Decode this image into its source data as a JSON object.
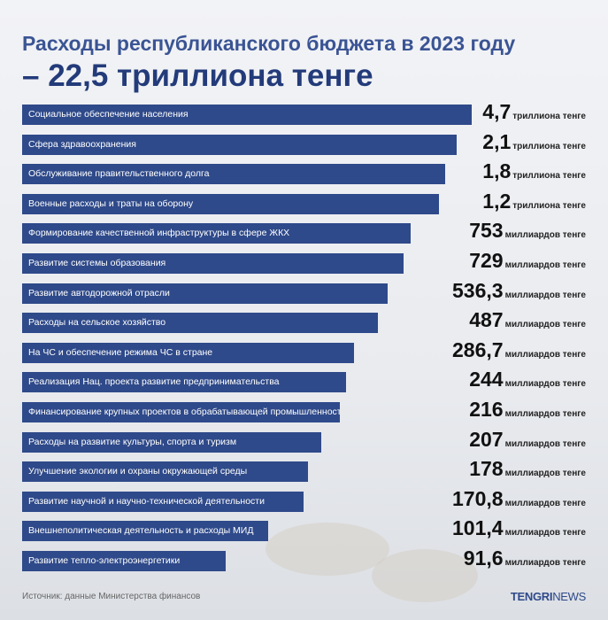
{
  "title": "Расходы республиканского бюджета в 2023 году",
  "subtitle": "– 22,5 триллиона тенге",
  "rows": [
    {
      "label": "Социальное обеспечение населения",
      "value": "4,7",
      "unit": "триллиона тенге"
    },
    {
      "label": "Сфера здравоохранения",
      "value": "2,1",
      "unit": "триллиона тенге"
    },
    {
      "label": "Обслуживание правительственного долга",
      "value": "1,8",
      "unit": "триллиона тенге"
    },
    {
      "label": "Военные расходы и траты на оборону",
      "value": "1,2",
      "unit": "триллиона тенге"
    },
    {
      "label": "Формирование качественной инфраструктуры в сфере ЖКХ",
      "value": "753",
      "unit": "миллиардов тенге"
    },
    {
      "label": "Развитие системы образования",
      "value": "729",
      "unit": "миллиардов тенге"
    },
    {
      "label": "Развитие автодорожной отрасли",
      "value": "536,3",
      "unit": "миллиардов тенге"
    },
    {
      "label": "Расходы на сельское хозяйство",
      "value": "487",
      "unit": "миллиардов тенге"
    },
    {
      "label": "На ЧС и обеспечение режима ЧС в стране",
      "value": "286,7",
      "unit": "миллиардов тенге"
    },
    {
      "label": "Реализация Нац. проекта развитие предпринимательства",
      "value": "244",
      "unit": "миллиардов тенге"
    },
    {
      "label": "Финансирование крупных проектов в обрабатывающей промышленности",
      "value": "216",
      "unit": "миллиардов тенге"
    },
    {
      "label": "Расходы на развитие культуры, спорта и туризм",
      "value": "207",
      "unit": "миллиардов тенге"
    },
    {
      "label": "Улучшение экологии и охраны окружающей среды",
      "value": "178",
      "unit": "миллиардов тенге"
    },
    {
      "label": "Развитие научной и научно-технической деятельности",
      "value": "170,8",
      "unit": "миллиардов тенге"
    },
    {
      "label": "Внешнеполитическая деятельность и расходы МИД",
      "value": "101,4",
      "unit": "миллиардов тенге"
    },
    {
      "label": "Развитие тепло-электроэнергетики",
      "value": "91,6",
      "unit": "миллиардов тенге"
    }
  ],
  "source": "Источник: данные Министерства финансов",
  "logo": {
    "bold": "TENGRI",
    "light": "NEWS"
  }
}
